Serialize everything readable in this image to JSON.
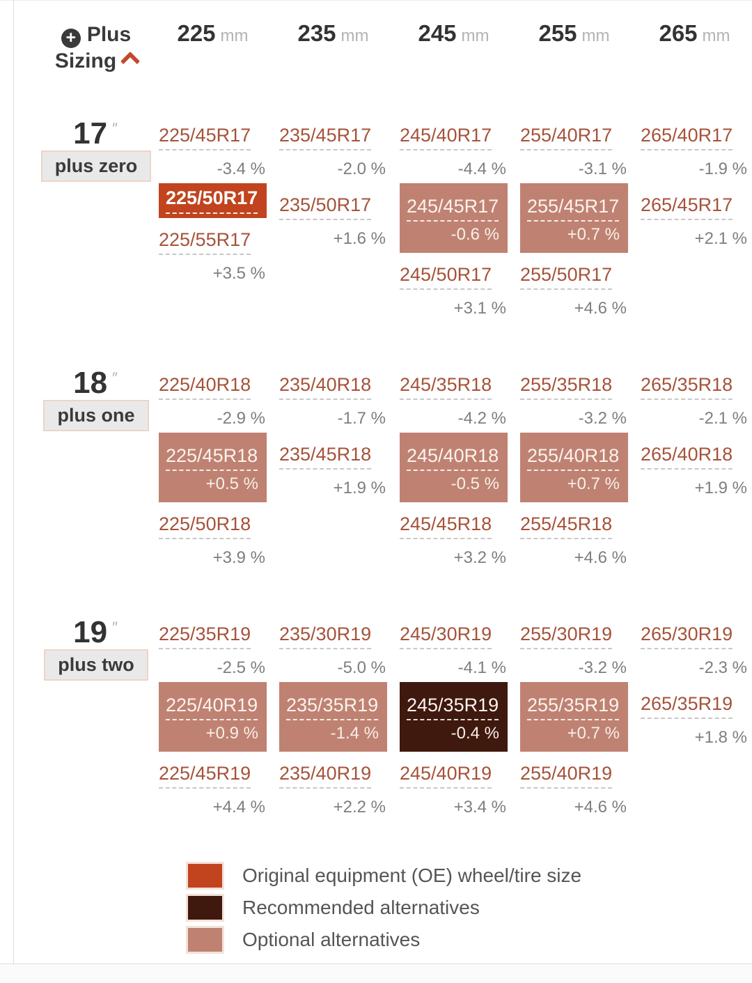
{
  "header": {
    "title_line1": "Plus",
    "title_line2": "Sizing",
    "plus_icon": "plus-circle-icon",
    "collapse_icon": "chevron-up-icon"
  },
  "colors": {
    "oe": "#c1441f",
    "recommended": "#3f180e",
    "optional": "#bf8272",
    "link": "#a65239"
  },
  "chart_data": {
    "type": "table",
    "title": "Plus Sizing",
    "column_headers": [
      {
        "value": "225",
        "unit": "mm"
      },
      {
        "value": "235",
        "unit": "mm"
      },
      {
        "value": "245",
        "unit": "mm"
      },
      {
        "value": "255",
        "unit": "mm"
      },
      {
        "value": "265",
        "unit": "mm"
      }
    ],
    "groups": [
      {
        "diameter": "17",
        "inch_mark": "″",
        "badge": "plus zero",
        "columns": [
          [
            {
              "size": "225/45R17",
              "pct": "-3.4 %",
              "type": "plain"
            },
            {
              "size": "225/50R17",
              "tag": "OE",
              "type": "oe"
            },
            {
              "size": "225/55R17",
              "pct": "+3.5 %",
              "type": "plain"
            }
          ],
          [
            {
              "size": "235/45R17",
              "pct": "-2.0 %",
              "type": "plain"
            },
            {
              "size": "235/50R17",
              "pct": "+1.6 %",
              "type": "plain"
            }
          ],
          [
            {
              "size": "245/40R17",
              "pct": "-4.4 %",
              "type": "plain"
            },
            {
              "size": "245/45R17",
              "pct": "-0.6 %",
              "type": "optional"
            },
            {
              "size": "245/50R17",
              "pct": "+3.1 %",
              "type": "plain"
            }
          ],
          [
            {
              "size": "255/40R17",
              "pct": "-3.1 %",
              "type": "plain"
            },
            {
              "size": "255/45R17",
              "pct": "+0.7 %",
              "type": "optional"
            },
            {
              "size": "255/50R17",
              "pct": "+4.6 %",
              "type": "plain"
            }
          ],
          [
            {
              "size": "265/40R17",
              "pct": "-1.9 %",
              "type": "plain"
            },
            {
              "size": "265/45R17",
              "pct": "+2.1 %",
              "type": "plain"
            }
          ]
        ]
      },
      {
        "diameter": "18",
        "inch_mark": "″",
        "badge": "plus one",
        "columns": [
          [
            {
              "size": "225/40R18",
              "pct": "-2.9 %",
              "type": "plain"
            },
            {
              "size": "225/45R18",
              "pct": "+0.5 %",
              "type": "optional"
            },
            {
              "size": "225/50R18",
              "pct": "+3.9 %",
              "type": "plain"
            }
          ],
          [
            {
              "size": "235/40R18",
              "pct": "-1.7 %",
              "type": "plain"
            },
            {
              "size": "235/45R18",
              "pct": "+1.9 %",
              "type": "plain"
            }
          ],
          [
            {
              "size": "245/35R18",
              "pct": "-4.2 %",
              "type": "plain"
            },
            {
              "size": "245/40R18",
              "pct": "-0.5 %",
              "type": "optional"
            },
            {
              "size": "245/45R18",
              "pct": "+3.2 %",
              "type": "plain"
            }
          ],
          [
            {
              "size": "255/35R18",
              "pct": "-3.2 %",
              "type": "plain"
            },
            {
              "size": "255/40R18",
              "pct": "+0.7 %",
              "type": "optional"
            },
            {
              "size": "255/45R18",
              "pct": "+4.6 %",
              "type": "plain"
            }
          ],
          [
            {
              "size": "265/35R18",
              "pct": "-2.1 %",
              "type": "plain"
            },
            {
              "size": "265/40R18",
              "pct": "+1.9 %",
              "type": "plain"
            }
          ]
        ]
      },
      {
        "diameter": "19",
        "inch_mark": "″",
        "badge": "plus two",
        "columns": [
          [
            {
              "size": "225/35R19",
              "pct": "-2.5 %",
              "type": "plain"
            },
            {
              "size": "225/40R19",
              "pct": "+0.9 %",
              "type": "optional"
            },
            {
              "size": "225/45R19",
              "pct": "+4.4 %",
              "type": "plain"
            }
          ],
          [
            {
              "size": "235/30R19",
              "pct": "-5.0 %",
              "type": "plain"
            },
            {
              "size": "235/35R19",
              "pct": "-1.4 %",
              "type": "optional"
            },
            {
              "size": "235/40R19",
              "pct": "+2.2 %",
              "type": "plain"
            }
          ],
          [
            {
              "size": "245/30R19",
              "pct": "-4.1 %",
              "type": "plain"
            },
            {
              "size": "245/35R19",
              "pct": "-0.4 %",
              "type": "recommended"
            },
            {
              "size": "245/40R19",
              "pct": "+3.4 %",
              "type": "plain"
            }
          ],
          [
            {
              "size": "255/30R19",
              "pct": "-3.2 %",
              "type": "plain"
            },
            {
              "size": "255/35R19",
              "pct": "+0.7 %",
              "type": "optional"
            },
            {
              "size": "255/40R19",
              "pct": "+4.6 %",
              "type": "plain"
            }
          ],
          [
            {
              "size": "265/30R19",
              "pct": "-2.3 %",
              "type": "plain"
            },
            {
              "size": "265/35R19",
              "pct": "+1.8 %",
              "type": "plain"
            }
          ]
        ]
      }
    ],
    "legend": [
      {
        "type": "oe",
        "label": "Original equipment (OE) wheel/tire size"
      },
      {
        "type": "recommended",
        "label": "Recommended alternatives"
      },
      {
        "type": "optional",
        "label": "Optional alternatives"
      }
    ]
  }
}
